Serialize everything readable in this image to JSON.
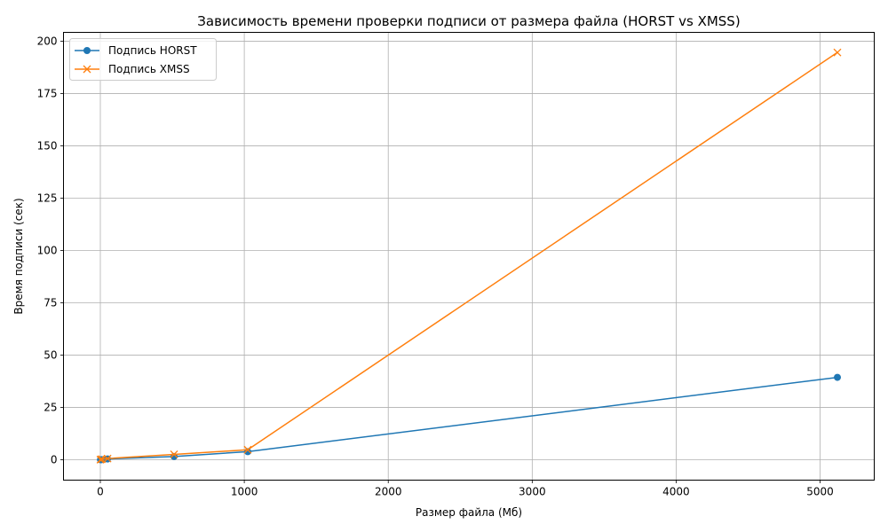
{
  "chart_data": {
    "type": "line",
    "title": "Зависимость времени проверки подписи от размера файла (HORST vs XMSS)",
    "xlabel": "Размер файла (Мб)",
    "ylabel": "Время подписи (сек)",
    "xlim": [
      -256,
      5376
    ],
    "ylim": [
      -9.7,
      204.2
    ],
    "xticks": [
      0,
      1000,
      2000,
      3000,
      4000,
      5000
    ],
    "yticks": [
      0,
      25,
      50,
      75,
      100,
      125,
      150,
      175,
      200
    ],
    "grid": true,
    "legend_position": "top-left",
    "series": [
      {
        "name": "Подпись HORST",
        "color": "#1f77b4",
        "marker": "circle",
        "x": [
          1,
          10,
          50,
          512,
          1024,
          5120
        ],
        "y": [
          0.05,
          0.1,
          0.4,
          1.6,
          3.9,
          39.4
        ]
      },
      {
        "name": "Подпись XMSS",
        "color": "#ff7f0e",
        "marker": "x",
        "x": [
          1,
          10,
          50,
          512,
          1024,
          5120
        ],
        "y": [
          0.1,
          0.3,
          0.6,
          2.6,
          4.8,
          194.6
        ]
      }
    ]
  }
}
